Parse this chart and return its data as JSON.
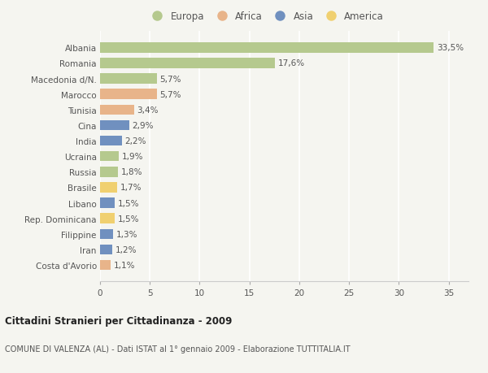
{
  "countries": [
    "Albania",
    "Romania",
    "Macedonia d/N.",
    "Marocco",
    "Tunisia",
    "Cina",
    "India",
    "Ucraina",
    "Russia",
    "Brasile",
    "Libano",
    "Rep. Dominicana",
    "Filippine",
    "Iran",
    "Costa d'Avorio"
  ],
  "values": [
    33.5,
    17.6,
    5.7,
    5.7,
    3.4,
    2.9,
    2.2,
    1.9,
    1.8,
    1.7,
    1.5,
    1.5,
    1.3,
    1.2,
    1.1
  ],
  "labels": [
    "33,5%",
    "17,6%",
    "5,7%",
    "5,7%",
    "3,4%",
    "2,9%",
    "2,2%",
    "1,9%",
    "1,8%",
    "1,7%",
    "1,5%",
    "1,5%",
    "1,3%",
    "1,2%",
    "1,1%"
  ],
  "continents": [
    "Europa",
    "Europa",
    "Europa",
    "Africa",
    "Africa",
    "Asia",
    "Asia",
    "Europa",
    "Europa",
    "America",
    "Asia",
    "America",
    "Asia",
    "Asia",
    "Africa"
  ],
  "continent_colors": {
    "Europa": "#b5c98e",
    "Africa": "#e8b48a",
    "Asia": "#7090bf",
    "America": "#f0d070"
  },
  "legend_order": [
    "Europa",
    "Africa",
    "Asia",
    "America"
  ],
  "title": "Cittadini Stranieri per Cittadinanza - 2009",
  "subtitle": "COMUNE DI VALENZA (AL) - Dati ISTAT al 1° gennaio 2009 - Elaborazione TUTTITALIA.IT",
  "xlim": [
    0,
    37
  ],
  "xticks": [
    0,
    5,
    10,
    15,
    20,
    25,
    30,
    35
  ],
  "background_color": "#f5f5f0",
  "grid_color": "#ffffff",
  "bar_height": 0.65
}
